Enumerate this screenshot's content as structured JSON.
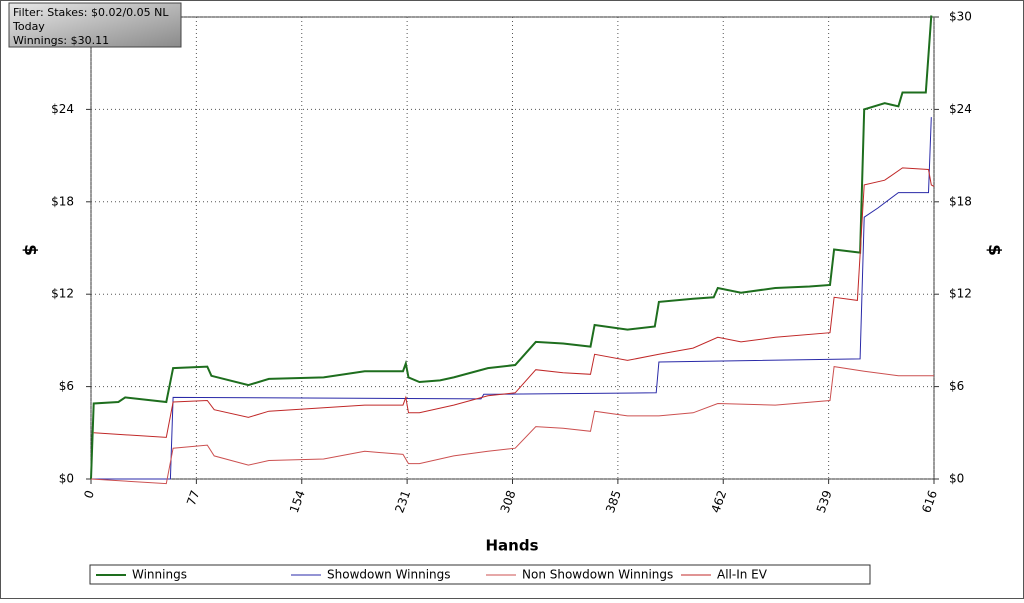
{
  "chart_data": {
    "type": "line",
    "info": [
      "Filter: Stakes: $0.02/0.05 NL",
      "Today",
      "Winnings: $30.11"
    ],
    "x_label": "Hands",
    "y_label": "$",
    "y2_label": "$",
    "xlim": [
      0,
      616
    ],
    "xticks": [
      0,
      77,
      154,
      231,
      308,
      385,
      462,
      539,
      616
    ],
    "ylim": [
      0,
      30
    ],
    "yticks": [
      {
        "value": 0,
        "label": "$0"
      },
      {
        "value": 6,
        "label": "$6"
      },
      {
        "value": 12,
        "label": "$12"
      },
      {
        "value": 18,
        "label": "$18"
      },
      {
        "value": 24,
        "label": "$24"
      },
      {
        "value": 30,
        "label": "$30"
      }
    ],
    "grid": true,
    "series": [
      {
        "name": "Winnings",
        "color": "#1e6e1e",
        "x": [
          0,
          2,
          20,
          25,
          55,
          60,
          85,
          88,
          115,
          130,
          170,
          200,
          228,
          230,
          232,
          240,
          255,
          265,
          290,
          310,
          325,
          345,
          365,
          368,
          392,
          412,
          415,
          440,
          455,
          458,
          475,
          500,
          525,
          540,
          543,
          562,
          565,
          580,
          590,
          593,
          610,
          614
        ],
        "values": [
          0,
          4.9,
          5.0,
          5.3,
          5.0,
          7.2,
          7.3,
          6.7,
          6.1,
          6.5,
          6.6,
          7.0,
          7.0,
          7.5,
          6.6,
          6.3,
          6.4,
          6.6,
          7.2,
          7.4,
          8.9,
          8.8,
          8.6,
          10.0,
          9.7,
          9.9,
          11.5,
          11.7,
          11.8,
          12.4,
          12.1,
          12.4,
          12.5,
          12.6,
          14.9,
          14.7,
          24.0,
          24.4,
          24.2,
          25.1,
          25.1,
          30.1
        ]
      },
      {
        "name": "Showdown Winnings",
        "color": "#2a2aa8",
        "x": [
          0,
          58,
          60,
          285,
          287,
          413,
          415,
          562,
          565,
          575,
          590,
          612,
          614
        ],
        "values": [
          0,
          0,
          5.3,
          5.2,
          5.5,
          5.6,
          7.6,
          7.8,
          17.0,
          17.6,
          18.6,
          18.6,
          23.5
        ]
      },
      {
        "name": "Non Showdown Winnings",
        "color": "#cc5050",
        "x": [
          0,
          55,
          60,
          85,
          90,
          115,
          130,
          170,
          200,
          228,
          232,
          240,
          265,
          290,
          310,
          325,
          345,
          365,
          368,
          392,
          415,
          440,
          458,
          500,
          540,
          543,
          565,
          590,
          616
        ],
        "values": [
          0,
          -0.3,
          2.0,
          2.2,
          1.5,
          0.9,
          1.2,
          1.3,
          1.8,
          1.6,
          1.0,
          1.0,
          1.5,
          1.8,
          2.0,
          3.4,
          3.3,
          3.1,
          4.4,
          4.1,
          4.1,
          4.3,
          4.9,
          4.8,
          5.1,
          7.3,
          7.0,
          6.7,
          6.7
        ]
      },
      {
        "name": "All-In EV",
        "color": "#c02828",
        "x": [
          2,
          55,
          60,
          85,
          90,
          115,
          130,
          200,
          228,
          230,
          232,
          240,
          265,
          290,
          310,
          325,
          345,
          365,
          368,
          392,
          415,
          440,
          458,
          475,
          500,
          540,
          543,
          560,
          565,
          580,
          593,
          612,
          614,
          616
        ],
        "values": [
          3.0,
          2.7,
          5.0,
          5.1,
          4.5,
          4.0,
          4.4,
          4.8,
          4.8,
          5.3,
          4.3,
          4.3,
          4.8,
          5.4,
          5.6,
          7.1,
          6.9,
          6.8,
          8.1,
          7.7,
          8.1,
          8.5,
          9.2,
          8.9,
          9.2,
          9.5,
          11.8,
          11.6,
          19.1,
          19.4,
          20.2,
          20.1,
          19.1,
          19.0
        ]
      }
    ]
  }
}
